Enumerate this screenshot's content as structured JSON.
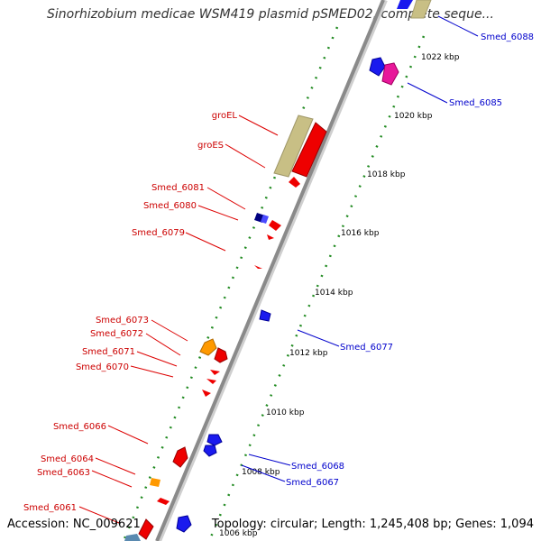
{
  "header": {
    "title": "Sinorhizobium medicae WSM419 plasmid pSMED02, complete seque..."
  },
  "footer": {
    "accession": "Accession: NC_009621",
    "topology": "Topology: circular; Length: 1,245,408 bp; Genes: 1,094"
  },
  "colors": {
    "forward_label": "#cc0000",
    "reverse_label": "#0000cc",
    "ruler_tick": "#228b22",
    "backbone": "#888888",
    "red_gene": "#ee0000",
    "blue_gene": "#1a1aee",
    "khaki_gene": "#c8bf85",
    "orange_gene": "#ff9900",
    "magenta_gene": "#e8189a",
    "navy_gene": "#000080"
  },
  "ruler": [
    {
      "label": "1022 kbp"
    },
    {
      "label": "1020 kbp"
    },
    {
      "label": "1018 kbp"
    },
    {
      "label": "1016 kbp"
    },
    {
      "label": "1014 kbp"
    },
    {
      "label": "1012 kbp"
    },
    {
      "label": "1010 kbp"
    },
    {
      "label": "1008 kbp"
    },
    {
      "label": "1006 kbp"
    }
  ],
  "forward_labels": [
    {
      "name": "groEL"
    },
    {
      "name": "groES"
    },
    {
      "name": "Smed_6081"
    },
    {
      "name": "Smed_6080"
    },
    {
      "name": "Smed_6079"
    },
    {
      "name": "Smed_6073"
    },
    {
      "name": "Smed_6072"
    },
    {
      "name": "Smed_6071"
    },
    {
      "name": "Smed_6070"
    },
    {
      "name": "Smed_6066"
    },
    {
      "name": "Smed_6064"
    },
    {
      "name": "Smed_6063"
    },
    {
      "name": "Smed_6061"
    }
  ],
  "reverse_labels": [
    {
      "name": "Smed_6088"
    },
    {
      "name": "Smed_6085"
    },
    {
      "name": "Smed_6077"
    },
    {
      "name": "Smed_6068"
    },
    {
      "name": "Smed_6067"
    }
  ]
}
